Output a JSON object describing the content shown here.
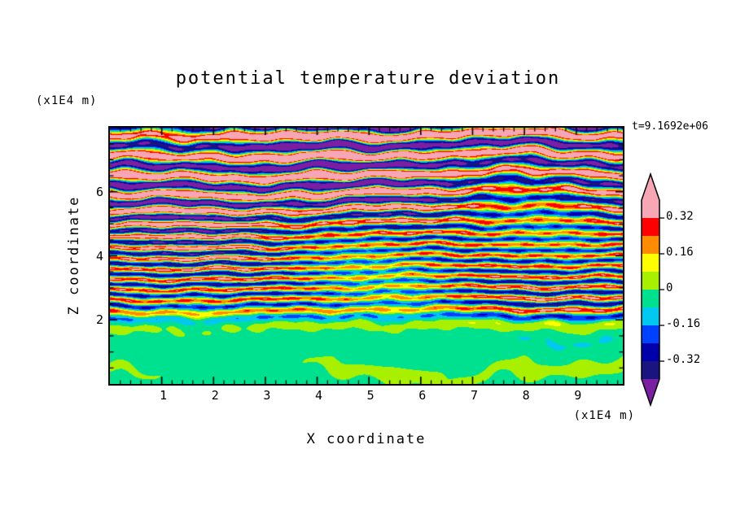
{
  "chart_data": {
    "type": "heatmap",
    "title": "potential temperature deviation",
    "time_annotation": "t=9.1692e+06",
    "xlabel": "X coordinate",
    "ylabel": "Z coordinate",
    "x_unit": "(x1E4 m)",
    "z_unit": "(x1E4 m)",
    "xlim": [
      0,
      9.9
    ],
    "zlim": [
      0,
      8
    ],
    "x_ticks": [
      1,
      2,
      3,
      4,
      5,
      6,
      7,
      8,
      9
    ],
    "z_ticks": [
      2,
      4,
      6
    ],
    "contour_levels": [
      0.4,
      0.32,
      0.24,
      0.16,
      0.08,
      0,
      -0.08,
      -0.16,
      -0.24,
      -0.32,
      -0.4
    ],
    "colorbar_labels": [
      "0.32",
      "0.16",
      "0",
      "-0.16",
      "-0.32"
    ],
    "palette": {
      "over": "#f6a6b4",
      "colors_high_to_low": [
        "#f6a6b4",
        "#ff0000",
        "#ff8c00",
        "#ffff00",
        "#a8f000",
        "#00e18f",
        "#00c8f0",
        "#0040ff",
        "#0000aa",
        "#1a1480"
      ],
      "under": "#7b1fa2"
    },
    "field_description": "Stratified turbulent potential-temperature deviation field: near-zero slightly negative (green, with yellow-green patches) below z~2e4 m; thin alternating positive (red/orange/yellow) and negative (cyan/blue/navy) horizontal stripes of amplitude ~0.3 for 2e4<z<5.5e4 m; thicker saturated bands exceeding +-0.4 (pink and purple) in the upper region above z~5.5e4 m."
  }
}
